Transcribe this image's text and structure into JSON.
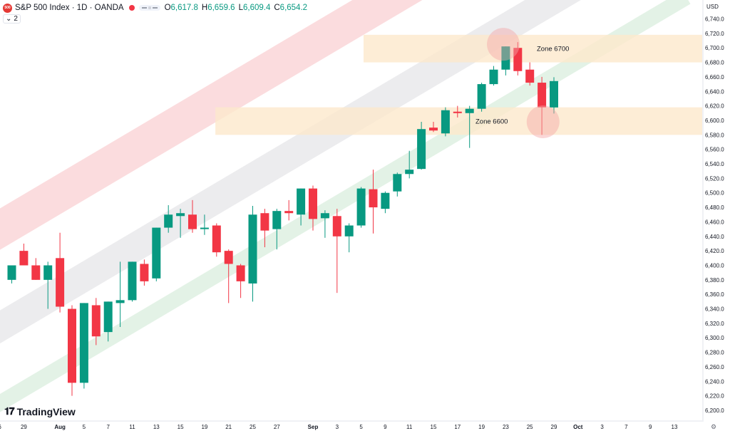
{
  "header": {
    "logo_text": "500",
    "symbol": "S&P 500 Index · 1D · OANDA",
    "ohlc": [
      {
        "k": "O",
        "v": "6,617.8"
      },
      {
        "k": "H",
        "v": "6,659.6"
      },
      {
        "k": "L",
        "v": "6,609.4"
      },
      {
        "k": "C",
        "v": "6,654.2"
      }
    ],
    "indicator_count": "2",
    "currency": "USD",
    "watermark": "TradingView"
  },
  "colors": {
    "up": "#089981",
    "down": "#f23645",
    "band_red": "#f9d0d3",
    "band_gray": "#e5e6e8",
    "band_green": "#d9eedd",
    "zone_fill": "#fde8cc",
    "circle": "#f4a7a7"
  },
  "chart_data": {
    "type": "candlestick",
    "title": "S&P 500 Index · 1D · OANDA",
    "y_axis": {
      "min": 6200,
      "max": 6740,
      "step": 20,
      "labels": [
        "6,740.0",
        "6,720.0",
        "6,700.0",
        "6,680.0",
        "6,660.0",
        "6,640.0",
        "6,620.0",
        "6,600.0",
        "6,580.0",
        "6,560.0",
        "6,540.0",
        "6,520.0",
        "6,500.0",
        "6,480.0",
        "6,460.0",
        "6,440.0",
        "6,420.0",
        "6,400.0",
        "6,380.0",
        "6,360.0",
        "6,340.0",
        "6,320.0",
        "6,300.0",
        "6,280.0",
        "6,260.0",
        "6,240.0",
        "6,220.0",
        "6,200.0"
      ]
    },
    "x_axis": {
      "labels": [
        {
          "t": "6",
          "i": -1.0
        },
        {
          "t": "29",
          "i": 1.0
        },
        {
          "t": "Aug",
          "i": 4.0
        },
        {
          "t": "5",
          "i": 6.0
        },
        {
          "t": "7",
          "i": 8.0
        },
        {
          "t": "11",
          "i": 10.0
        },
        {
          "t": "13",
          "i": 12.0
        },
        {
          "t": "15",
          "i": 14.0
        },
        {
          "t": "19",
          "i": 16.0
        },
        {
          "t": "21",
          "i": 18.0
        },
        {
          "t": "25",
          "i": 20.0
        },
        {
          "t": "27",
          "i": 22.0
        },
        {
          "t": "Sep",
          "i": 25.0
        },
        {
          "t": "3",
          "i": 27.0
        },
        {
          "t": "5",
          "i": 29.0
        },
        {
          "t": "9",
          "i": 31.0
        },
        {
          "t": "11",
          "i": 33.0
        },
        {
          "t": "15",
          "i": 35.0
        },
        {
          "t": "17",
          "i": 37.0
        },
        {
          "t": "19",
          "i": 39.0
        },
        {
          "t": "23",
          "i": 41.0
        },
        {
          "t": "25",
          "i": 43.0
        },
        {
          "t": "29",
          "i": 45.0
        },
        {
          "t": "Oct",
          "i": 47.0
        },
        {
          "t": "3",
          "i": 49.0
        },
        {
          "t": "7",
          "i": 51.0
        },
        {
          "t": "9",
          "i": 53.0
        },
        {
          "t": "13",
          "i": 55.0
        }
      ]
    },
    "candles": [
      {
        "o": 6380,
        "h": 6400,
        "l": 6375,
        "c": 6400
      },
      {
        "o": 6420,
        "h": 6430,
        "l": 6400,
        "c": 6400
      },
      {
        "o": 6400,
        "h": 6410,
        "l": 6380,
        "c": 6380
      },
      {
        "o": 6380,
        "h": 6405,
        "l": 6340,
        "c": 6400
      },
      {
        "o": 6410,
        "h": 6445,
        "l": 6335,
        "c": 6343
      },
      {
        "o": 6340,
        "h": 6345,
        "l": 6220,
        "c": 6238
      },
      {
        "o": 6238,
        "h": 6348,
        "l": 6230,
        "c": 6348
      },
      {
        "o": 6345,
        "h": 6355,
        "l": 6290,
        "c": 6302
      },
      {
        "o": 6308,
        "h": 6350,
        "l": 6295,
        "c": 6350
      },
      {
        "o": 6348,
        "h": 6405,
        "l": 6315,
        "c": 6352
      },
      {
        "o": 6352,
        "h": 6405,
        "l": 6350,
        "c": 6405
      },
      {
        "o": 6402,
        "h": 6408,
        "l": 6372,
        "c": 6378
      },
      {
        "o": 6382,
        "h": 6452,
        "l": 6378,
        "c": 6452
      },
      {
        "o": 6452,
        "h": 6483,
        "l": 6445,
        "c": 6470
      },
      {
        "o": 6468,
        "h": 6478,
        "l": 6438,
        "c": 6472
      },
      {
        "o": 6470,
        "h": 6490,
        "l": 6445,
        "c": 6450
      },
      {
        "o": 6450,
        "h": 6470,
        "l": 6442,
        "c": 6452
      },
      {
        "o": 6455,
        "h": 6458,
        "l": 6412,
        "c": 6418
      },
      {
        "o": 6420,
        "h": 6422,
        "l": 6348,
        "c": 6402
      },
      {
        "o": 6400,
        "h": 6402,
        "l": 6355,
        "c": 6378
      },
      {
        "o": 6375,
        "h": 6482,
        "l": 6350,
        "c": 6470
      },
      {
        "o": 6472,
        "h": 6478,
        "l": 6425,
        "c": 6448
      },
      {
        "o": 6450,
        "h": 6478,
        "l": 6422,
        "c": 6475
      },
      {
        "o": 6475,
        "h": 6490,
        "l": 6462,
        "c": 6472
      },
      {
        "o": 6470,
        "h": 6506,
        "l": 6455,
        "c": 6506
      },
      {
        "o": 6506,
        "h": 6510,
        "l": 6448,
        "c": 6464
      },
      {
        "o": 6465,
        "h": 6476,
        "l": 6438,
        "c": 6472
      },
      {
        "o": 6468,
        "h": 6478,
        "l": 6362,
        "c": 6440
      },
      {
        "o": 6440,
        "h": 6458,
        "l": 6418,
        "c": 6455
      },
      {
        "o": 6455,
        "h": 6508,
        "l": 6452,
        "c": 6506
      },
      {
        "o": 6505,
        "h": 6532,
        "l": 6444,
        "c": 6480
      },
      {
        "o": 6478,
        "h": 6502,
        "l": 6472,
        "c": 6500
      },
      {
        "o": 6502,
        "h": 6528,
        "l": 6495,
        "c": 6526
      },
      {
        "o": 6526,
        "h": 6558,
        "l": 6520,
        "c": 6532
      },
      {
        "o": 6533,
        "h": 6598,
        "l": 6532,
        "c": 6588
      },
      {
        "o": 6590,
        "h": 6598,
        "l": 6584,
        "c": 6586
      },
      {
        "o": 6582,
        "h": 6618,
        "l": 6578,
        "c": 6614
      },
      {
        "o": 6612,
        "h": 6620,
        "l": 6604,
        "c": 6610
      },
      {
        "o": 6610,
        "h": 6620,
        "l": 6562,
        "c": 6616
      },
      {
        "o": 6616,
        "h": 6652,
        "l": 6612,
        "c": 6650
      },
      {
        "o": 6650,
        "h": 6675,
        "l": 6648,
        "c": 6670
      },
      {
        "o": 6670,
        "h": 6702,
        "l": 6662,
        "c": 6702
      },
      {
        "o": 6700,
        "h": 6708,
        "l": 6662,
        "c": 6668
      },
      {
        "o": 6670,
        "h": 6680,
        "l": 6648,
        "c": 6652
      },
      {
        "o": 6652,
        "h": 6660,
        "l": 6580,
        "c": 6618
      },
      {
        "o": 6617.8,
        "h": 6659.6,
        "l": 6609.4,
        "c": 6654.2
      }
    ],
    "annotations": {
      "zones": [
        {
          "label": "Zone 6700",
          "y_low": 6680,
          "y_high": 6718,
          "x_start": 29.2
        },
        {
          "label": "Zone 6600",
          "y_low": 6580,
          "y_high": 6618,
          "x_start": 16.9
        }
      ],
      "circles": [
        {
          "x": 40.8,
          "y": 6705
        },
        {
          "x": 44.1,
          "y": 6598
        }
      ],
      "channel": {
        "red": {
          "i0": -2,
          "y0": 6440,
          "i1": 56,
          "y1": 7010,
          "w": 50
        },
        "gray": {
          "i0": -2,
          "y0": 6305,
          "i1": 56,
          "y1": 6875,
          "w": 40
        },
        "green": {
          "i0": -2,
          "y0": 6200,
          "i1": 56,
          "y1": 6770,
          "w": 22
        }
      }
    }
  }
}
